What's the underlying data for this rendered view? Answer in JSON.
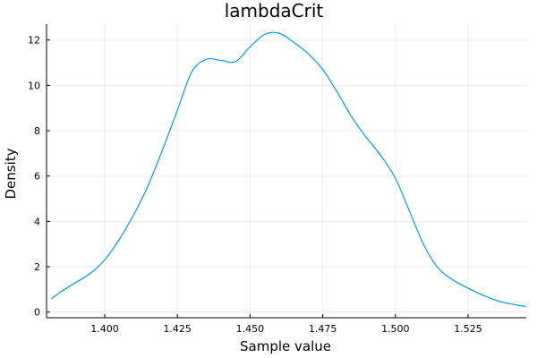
{
  "chart_data": {
    "type": "line",
    "title": "lambdaCrit",
    "xlabel": "Sample value",
    "ylabel": "Density",
    "xlim": [
      1.38,
      1.545
    ],
    "ylim": [
      -0.25,
      12.7
    ],
    "x_ticks": [
      1.4,
      1.425,
      1.45,
      1.475,
      1.5,
      1.525
    ],
    "x_tick_labels": [
      "1.400",
      "1.425",
      "1.450",
      "1.475",
      "1.500",
      "1.525"
    ],
    "y_ticks": [
      0,
      2,
      4,
      6,
      8,
      10,
      12
    ],
    "y_tick_labels": [
      "0",
      "2",
      "4",
      "6",
      "8",
      "10",
      "12"
    ],
    "grid": true,
    "legend": "none",
    "series": [
      {
        "color": "#009AFA",
        "x": [
          1.3818,
          1.385,
          1.39,
          1.395,
          1.4,
          1.405,
          1.41,
          1.415,
          1.42,
          1.425,
          1.43,
          1.435,
          1.44,
          1.445,
          1.45,
          1.455,
          1.46,
          1.465,
          1.47,
          1.475,
          1.48,
          1.485,
          1.49,
          1.495,
          1.5,
          1.505,
          1.51,
          1.515,
          1.52,
          1.525,
          1.53,
          1.535,
          1.54,
          1.5447
        ],
        "y": [
          0.6,
          0.9,
          1.3,
          1.7,
          2.3,
          3.2,
          4.3,
          5.6,
          7.2,
          8.9,
          10.6,
          11.15,
          11.1,
          11.05,
          11.7,
          12.25,
          12.3,
          11.9,
          11.4,
          10.7,
          9.7,
          8.6,
          7.7,
          6.9,
          5.9,
          4.4,
          2.9,
          1.9,
          1.4,
          1.05,
          0.75,
          0.5,
          0.35,
          0.25
        ]
      }
    ]
  }
}
